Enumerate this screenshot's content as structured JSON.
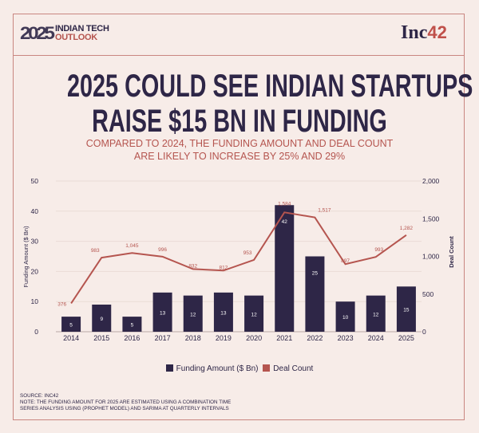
{
  "header": {
    "logo_year": "2025",
    "logo_line1": "INDIAN TECH",
    "logo_line2": "OUTLOOK",
    "brand_text": "Inc",
    "brand_num": "42"
  },
  "title_line1": "2025 COULD SEE INDIAN STARTUPS",
  "title_line2": "RAISE $15 BN IN FUNDING",
  "subtitle_line1": "COMPARED TO 2024, THE FUNDING AMOUNT AND DEAL COUNT",
  "subtitle_line2": "ARE LIKELY TO INCREASE BY 25% AND 29%",
  "footer": {
    "source": "SOURCE: INC42",
    "note1": "NOTE: THE FUNDING AMOUNT FOR 2025 ARE ESTIMATED USING A COMBINATION TIME",
    "note2": "SERIES ANALYSIS USING (PROPHET MODEL) AND SARIMA AT QUARTERLY INTERVALS"
  },
  "colors": {
    "bar": "#2e2647",
    "line": "#b5554f",
    "background": "#f7ece8"
  },
  "chart_data": {
    "type": "bar+line",
    "categories": [
      "2014",
      "2015",
      "2016",
      "2017",
      "2018",
      "2019",
      "2020",
      "2021",
      "2022",
      "2023",
      "2024",
      "2025"
    ],
    "series": [
      {
        "name": "Funding Amount ($ Bn)",
        "type": "bar",
        "axis": "left",
        "values": [
          5,
          9,
          5,
          13,
          12,
          13,
          12,
          42,
          25,
          10,
          12,
          15
        ]
      },
      {
        "name": "Deal Count",
        "type": "line",
        "axis": "right",
        "values": [
          376,
          983,
          1045,
          996,
          832,
          812,
          953,
          1584,
          1517,
          897,
          993,
          1282
        ],
        "labels": [
          "376",
          "983",
          "1,045",
          "996",
          "832",
          "812",
          "953",
          "1,584",
          "1,517",
          "897",
          "993",
          "1,282"
        ]
      }
    ],
    "ylabel": "Funding Amount ($ Bn)",
    "ylim": [
      0,
      50
    ],
    "yticks": [
      "0",
      "10",
      "20",
      "30",
      "40",
      "50"
    ],
    "y2label": "Deal Count",
    "y2lim": [
      0,
      2000
    ],
    "y2ticks": [
      "0",
      "500",
      "1,000",
      "1,500",
      "2,000"
    ],
    "grid": true,
    "legend": "bottom"
  }
}
